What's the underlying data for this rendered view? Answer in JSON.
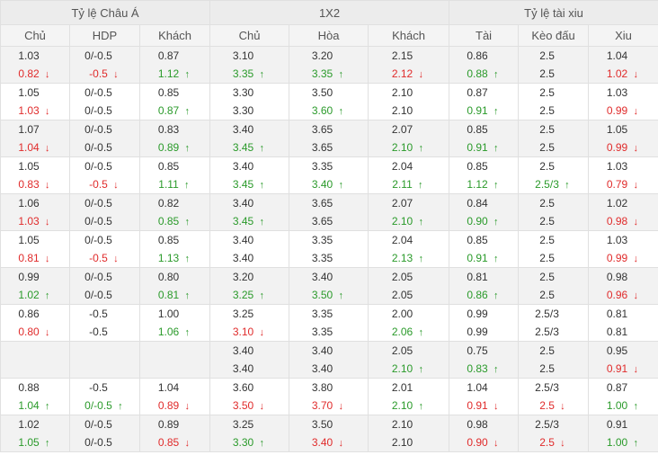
{
  "groups": [
    {
      "label": "Tỷ lệ Châu Á",
      "span": 3
    },
    {
      "label": "1X2",
      "span": 3
    },
    {
      "label": "Tỷ lệ tài xiu",
      "span": 3
    }
  ],
  "columns": [
    "Chủ",
    "HDP",
    "Khách",
    "Chủ",
    "Hòa",
    "Khách",
    "Tài",
    "Kèo đấu",
    "Xiu"
  ],
  "rows": [
    [
      [
        "1.03",
        "0.82",
        "down"
      ],
      [
        "0/-0.5",
        "-0.5",
        "down"
      ],
      [
        "0.87",
        "1.12",
        "up"
      ],
      [
        "3.10",
        "3.35",
        "up"
      ],
      [
        "3.20",
        "3.35",
        "up"
      ],
      [
        "2.15",
        "2.12",
        "down"
      ],
      [
        "0.86",
        "0.88",
        "up"
      ],
      [
        "2.5",
        "2.5",
        ""
      ],
      [
        "1.04",
        "1.02",
        "down"
      ]
    ],
    [
      [
        "1.05",
        "1.03",
        "down"
      ],
      [
        "0/-0.5",
        "0/-0.5",
        ""
      ],
      [
        "0.85",
        "0.87",
        "up"
      ],
      [
        "3.30",
        "3.30",
        ""
      ],
      [
        "3.50",
        "3.60",
        "up"
      ],
      [
        "2.10",
        "2.10",
        ""
      ],
      [
        "0.87",
        "0.91",
        "up"
      ],
      [
        "2.5",
        "2.5",
        ""
      ],
      [
        "1.03",
        "0.99",
        "down"
      ]
    ],
    [
      [
        "1.07",
        "1.04",
        "down"
      ],
      [
        "0/-0.5",
        "0/-0.5",
        ""
      ],
      [
        "0.83",
        "0.89",
        "up"
      ],
      [
        "3.40",
        "3.45",
        "up"
      ],
      [
        "3.65",
        "3.65",
        ""
      ],
      [
        "2.07",
        "2.10",
        "up"
      ],
      [
        "0.85",
        "0.91",
        "up"
      ],
      [
        "2.5",
        "2.5",
        ""
      ],
      [
        "1.05",
        "0.99",
        "down"
      ]
    ],
    [
      [
        "1.05",
        "0.83",
        "down"
      ],
      [
        "0/-0.5",
        "-0.5",
        "down"
      ],
      [
        "0.85",
        "1.11",
        "up"
      ],
      [
        "3.40",
        "3.45",
        "up"
      ],
      [
        "3.35",
        "3.40",
        "up"
      ],
      [
        "2.04",
        "2.11",
        "up"
      ],
      [
        "0.85",
        "1.12",
        "up"
      ],
      [
        "2.5",
        "2.5/3",
        "up"
      ],
      [
        "1.03",
        "0.79",
        "down"
      ]
    ],
    [
      [
        "1.06",
        "1.03",
        "down"
      ],
      [
        "0/-0.5",
        "0/-0.5",
        ""
      ],
      [
        "0.82",
        "0.85",
        "up"
      ],
      [
        "3.40",
        "3.45",
        "up"
      ],
      [
        "3.65",
        "3.65",
        ""
      ],
      [
        "2.07",
        "2.10",
        "up"
      ],
      [
        "0.84",
        "0.90",
        "up"
      ],
      [
        "2.5",
        "2.5",
        ""
      ],
      [
        "1.02",
        "0.98",
        "down"
      ]
    ],
    [
      [
        "1.05",
        "0.81",
        "down"
      ],
      [
        "0/-0.5",
        "-0.5",
        "down"
      ],
      [
        "0.85",
        "1.13",
        "up"
      ],
      [
        "3.40",
        "3.40",
        ""
      ],
      [
        "3.35",
        "3.35",
        ""
      ],
      [
        "2.04",
        "2.13",
        "up"
      ],
      [
        "0.85",
        "0.91",
        "up"
      ],
      [
        "2.5",
        "2.5",
        ""
      ],
      [
        "1.03",
        "0.99",
        "down"
      ]
    ],
    [
      [
        "0.99",
        "1.02",
        "up"
      ],
      [
        "0/-0.5",
        "0/-0.5",
        ""
      ],
      [
        "0.80",
        "0.81",
        "up"
      ],
      [
        "3.20",
        "3.25",
        "up"
      ],
      [
        "3.40",
        "3.50",
        "up"
      ],
      [
        "2.05",
        "2.05",
        ""
      ],
      [
        "0.81",
        "0.86",
        "up"
      ],
      [
        "2.5",
        "2.5",
        ""
      ],
      [
        "0.98",
        "0.96",
        "down"
      ]
    ],
    [
      [
        "0.86",
        "0.80",
        "down"
      ],
      [
        "-0.5",
        "-0.5",
        ""
      ],
      [
        "1.00",
        "1.06",
        "up"
      ],
      [
        "3.25",
        "3.10",
        "down"
      ],
      [
        "3.35",
        "3.35",
        ""
      ],
      [
        "2.00",
        "2.06",
        "up"
      ],
      [
        "0.99",
        "0.99",
        ""
      ],
      [
        "2.5/3",
        "2.5/3",
        ""
      ],
      [
        "0.81",
        "0.81",
        ""
      ]
    ],
    [
      [
        "",
        "",
        ""
      ],
      [
        "",
        "",
        ""
      ],
      [
        "",
        "",
        ""
      ],
      [
        "3.40",
        "3.40",
        ""
      ],
      [
        "3.40",
        "3.40",
        ""
      ],
      [
        "2.05",
        "2.10",
        "up"
      ],
      [
        "0.75",
        "0.83",
        "up"
      ],
      [
        "2.5",
        "2.5",
        ""
      ],
      [
        "0.95",
        "0.91",
        "down"
      ]
    ],
    [
      [
        "0.88",
        "1.04",
        "up"
      ],
      [
        "-0.5",
        "0/-0.5",
        "up"
      ],
      [
        "1.04",
        "0.89",
        "down"
      ],
      [
        "3.60",
        "3.50",
        "down"
      ],
      [
        "3.80",
        "3.70",
        "down"
      ],
      [
        "2.01",
        "2.10",
        "up"
      ],
      [
        "1.04",
        "0.91",
        "down"
      ],
      [
        "2.5/3",
        "2.5",
        "down"
      ],
      [
        "0.87",
        "1.00",
        "up"
      ]
    ],
    [
      [
        "1.02",
        "1.05",
        "up"
      ],
      [
        "0/-0.5",
        "0/-0.5",
        ""
      ],
      [
        "0.89",
        "0.85",
        "down"
      ],
      [
        "3.25",
        "3.30",
        "up"
      ],
      [
        "3.50",
        "3.40",
        "down"
      ],
      [
        "2.10",
        "2.10",
        ""
      ],
      [
        "0.98",
        "0.90",
        "down"
      ],
      [
        "2.5/3",
        "2.5",
        "down"
      ],
      [
        "0.91",
        "1.00",
        "up"
      ]
    ]
  ],
  "icons": {
    "up": "arrow-up-icon",
    "down": "arrow-down-icon"
  },
  "colors": {
    "up": "#2a9a2a",
    "down": "#e02b2b",
    "header_bg": "#ececec",
    "row_alt_bg": "#f2f2f2"
  }
}
